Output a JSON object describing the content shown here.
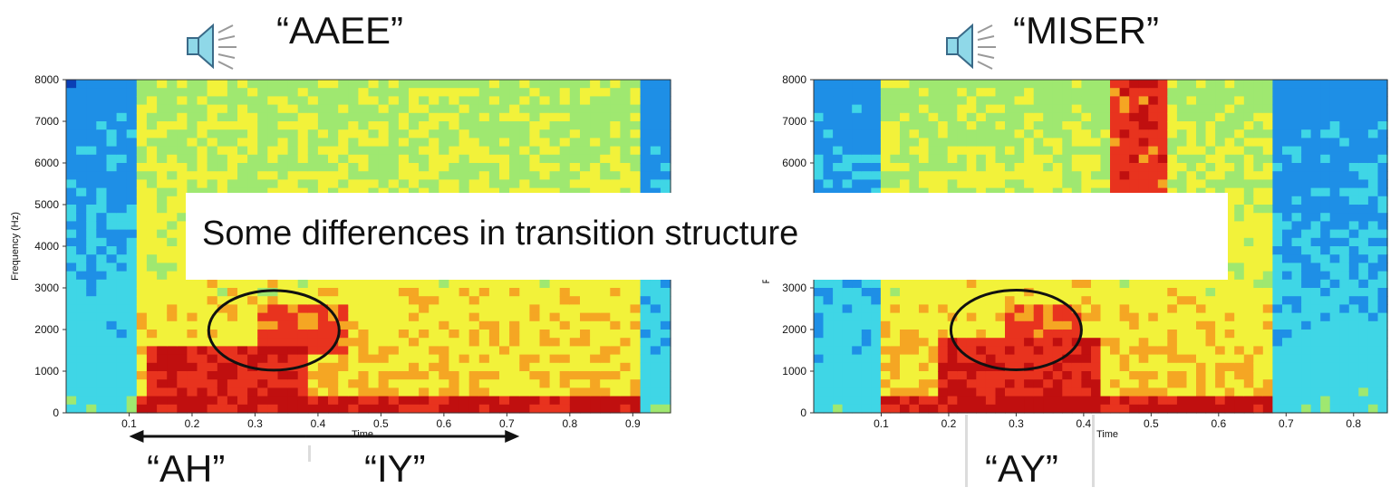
{
  "slide": {
    "overlay_text": "Some differences in transition structure",
    "left": {
      "title": "“AAEE”",
      "ylabel": "Frequency (Hz)",
      "xlabel": "Time",
      "ylabel_ticks": [
        "0",
        "1000",
        "2000",
        "3000",
        "4000",
        "5000",
        "6000",
        "7000",
        "8000"
      ],
      "xtick_labels": [
        "0.1",
        "0.2",
        "0.3",
        "0.4",
        "0.5",
        "0.6",
        "0.7",
        "0.8",
        "0.9"
      ],
      "phone_left": "“AH”",
      "phone_right": "“IY”"
    },
    "right": {
      "title": "“MISER”",
      "ylabel": "F",
      "xlabel": "Time",
      "ylabel_ticks": [
        "0",
        "1000",
        "2000",
        "3000",
        "6000",
        "7000",
        "8000"
      ],
      "xtick_labels": [
        "0.1",
        "0.2",
        "0.3",
        "0.4",
        "0.5",
        "0.6",
        "0.7",
        "0.8"
      ],
      "phone": "“AY”"
    }
  },
  "chart_data": [
    {
      "type": "heatmap",
      "title": "“AAEE”",
      "xlabel": "Time",
      "ylabel": "Frequency (Hz)",
      "xlim": [
        0,
        0.96
      ],
      "ylim": [
        0,
        8000
      ],
      "xticks": [
        0.1,
        0.2,
        0.3,
        0.4,
        0.5,
        0.6,
        0.7,
        0.8,
        0.9
      ],
      "yticks": [
        0,
        1000,
        2000,
        3000,
        4000,
        5000,
        6000,
        7000,
        8000
      ],
      "colormap": [
        "#0a3fb5",
        "#1e8fe6",
        "#3fd6e6",
        "#9fe870",
        "#f2f23a",
        "#f5a623",
        "#e8331e",
        "#c00f0f"
      ],
      "signal_range": [
        0.12,
        0.91
      ],
      "strong_bands": [
        {
          "t": [
            0.12,
            0.91
          ],
          "f": [
            0,
            450
          ],
          "level": 1.0
        },
        {
          "t": [
            0.13,
            0.38
          ],
          "f": [
            450,
            1500
          ],
          "level": 0.95
        },
        {
          "t": [
            0.3,
            0.45
          ],
          "f": [
            1500,
            2500
          ],
          "level": 0.85
        }
      ],
      "annotations": [
        {
          "type": "ellipse",
          "center": [
            0.33,
            1980
          ]
        },
        {
          "type": "arrow",
          "label": "“AH”",
          "from": 0.38,
          "to": 0.1
        },
        {
          "type": "arrow",
          "label": "“IY”",
          "from": 0.38,
          "to": 0.72
        }
      ]
    },
    {
      "type": "heatmap",
      "title": "“MISER”",
      "xlabel": "Time",
      "ylabel": "F",
      "xlim": [
        0,
        0.85
      ],
      "ylim": [
        0,
        8000
      ],
      "xticks": [
        0.1,
        0.2,
        0.3,
        0.4,
        0.5,
        0.6,
        0.7,
        0.8
      ],
      "yticks": [
        0,
        1000,
        2000,
        3000,
        6000,
        7000,
        8000
      ],
      "colormap": [
        "#0a3fb5",
        "#1e8fe6",
        "#3fd6e6",
        "#9fe870",
        "#f2f23a",
        "#f5a623",
        "#e8331e",
        "#c00f0f"
      ],
      "signal_range": [
        0.1,
        0.68
      ],
      "strong_bands": [
        {
          "t": [
            0.1,
            0.68
          ],
          "f": [
            0,
            450
          ],
          "level": 1.0
        },
        {
          "t": [
            0.18,
            0.42
          ],
          "f": [
            450,
            1800
          ],
          "level": 0.95
        },
        {
          "t": [
            0.44,
            0.52
          ],
          "f": [
            4000,
            8000
          ],
          "level": 0.9
        },
        {
          "t": [
            0.28,
            0.4
          ],
          "f": [
            1800,
            2600
          ],
          "level": 0.85
        }
      ],
      "annotations": [
        {
          "type": "ellipse",
          "center": [
            0.3,
            1990
          ]
        },
        {
          "type": "label",
          "label": "“AY”",
          "range": [
            0.21,
            0.39
          ]
        }
      ]
    }
  ]
}
